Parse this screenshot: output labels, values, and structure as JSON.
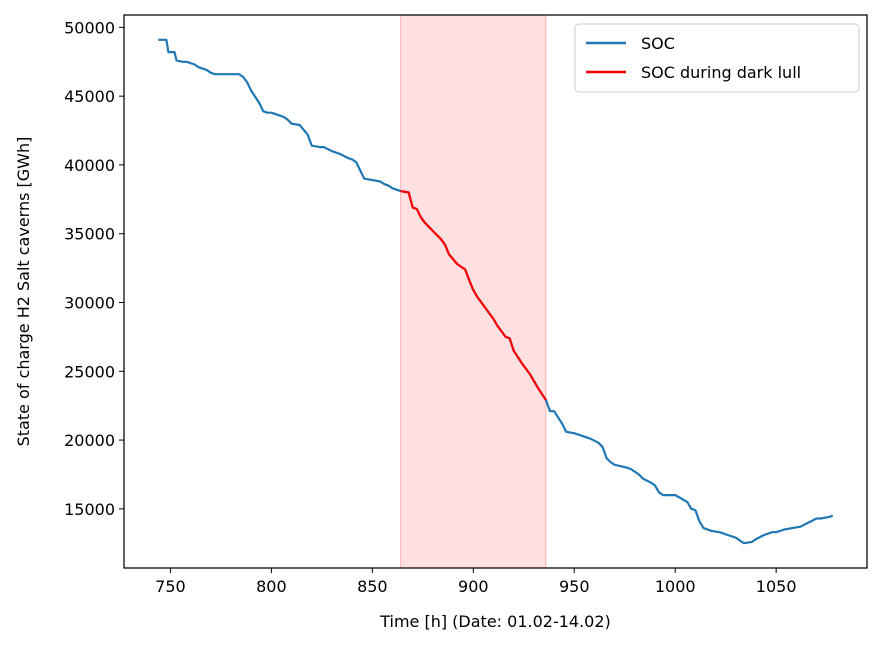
{
  "chart_data": {
    "type": "line",
    "title": "",
    "xlabel": "Time [h] (Date: 01.02-14.02)",
    "ylabel": "State of charge H2 Salt caverns [GWh]",
    "xlim": [
      727,
      1095
    ],
    "ylim": [
      10700,
      50900
    ],
    "xticks": [
      750,
      800,
      850,
      900,
      950,
      1000,
      1050
    ],
    "yticks": [
      15000,
      20000,
      25000,
      30000,
      35000,
      40000,
      45000,
      50000
    ],
    "grid": false,
    "legend_position": "top-right",
    "highlight_span": {
      "x0": 864,
      "x1": 936,
      "color": "#ff0000",
      "alpha": 0.12
    },
    "series": [
      {
        "name": "SOC",
        "color": "#1f77b4",
        "x": [
          744,
          748,
          749,
          752,
          753,
          756,
          758,
          762,
          764,
          766,
          768,
          770,
          772,
          784,
          786,
          788,
          790,
          794,
          796,
          798,
          800,
          806,
          808,
          810,
          814,
          818,
          820,
          824,
          826,
          830,
          834,
          838,
          840,
          842,
          844,
          846,
          850,
          854,
          856,
          858,
          860,
          862,
          864,
          868,
          870,
          872,
          874,
          876,
          880,
          884,
          886,
          888,
          892,
          896,
          898,
          900,
          902,
          904,
          906,
          908,
          910,
          912,
          916,
          918,
          920,
          924,
          928,
          932,
          936,
          938,
          940,
          944,
          946,
          950,
          954,
          958,
          962,
          964,
          966,
          968,
          970,
          976,
          978,
          982,
          984,
          988,
          990,
          992,
          994,
          998,
          1000,
          1006,
          1008,
          1010,
          1012,
          1014,
          1018,
          1022,
          1026,
          1030,
          1032,
          1034,
          1038,
          1040,
          1044,
          1048,
          1050,
          1054,
          1058,
          1062,
          1066,
          1070,
          1072,
          1076,
          1078
        ],
        "y": [
          49100,
          49100,
          48200,
          48200,
          47600,
          47500,
          47500,
          47300,
          47100,
          47000,
          46900,
          46700,
          46600,
          46600,
          46400,
          46000,
          45400,
          44500,
          43900,
          43800,
          43800,
          43500,
          43300,
          43000,
          42900,
          42200,
          41400,
          41300,
          41300,
          41000,
          40800,
          40500,
          40400,
          40200,
          39600,
          39000,
          38900,
          38800,
          38600,
          38500,
          38300,
          38200,
          38100,
          38000,
          36900,
          36800,
          36200,
          35800,
          35200,
          34600,
          34200,
          33500,
          32800,
          32400,
          31600,
          30900,
          30400,
          30000,
          29600,
          29200,
          28800,
          28300,
          27500,
          27400,
          26500,
          25600,
          24800,
          23800,
          22900,
          22100,
          22100,
          21200,
          20600,
          20500,
          20300,
          20100,
          19800,
          19500,
          18700,
          18400,
          18200,
          18000,
          17900,
          17500,
          17200,
          16900,
          16700,
          16200,
          16000,
          16000,
          16000,
          15500,
          15000,
          14900,
          14100,
          13600,
          13400,
          13300,
          13100,
          12900,
          12700,
          12500,
          12600,
          12800,
          13100,
          13300,
          13300,
          13500,
          13600,
          13700,
          14000,
          14300,
          14300,
          14400,
          14500
        ]
      },
      {
        "name": "SOC during dark lull",
        "color": "#ff0000",
        "x": [
          864,
          868,
          870,
          872,
          874,
          876,
          880,
          884,
          886,
          888,
          892,
          896,
          898,
          900,
          902,
          904,
          906,
          908,
          910,
          912,
          916,
          918,
          920,
          924,
          928,
          932,
          936
        ],
        "y": [
          38100,
          38000,
          36900,
          36800,
          36200,
          35800,
          35200,
          34600,
          34200,
          33500,
          32800,
          32400,
          31600,
          30900,
          30400,
          30000,
          29600,
          29200,
          28800,
          28300,
          27500,
          27400,
          26500,
          25600,
          24800,
          23800,
          22900
        ]
      }
    ]
  }
}
